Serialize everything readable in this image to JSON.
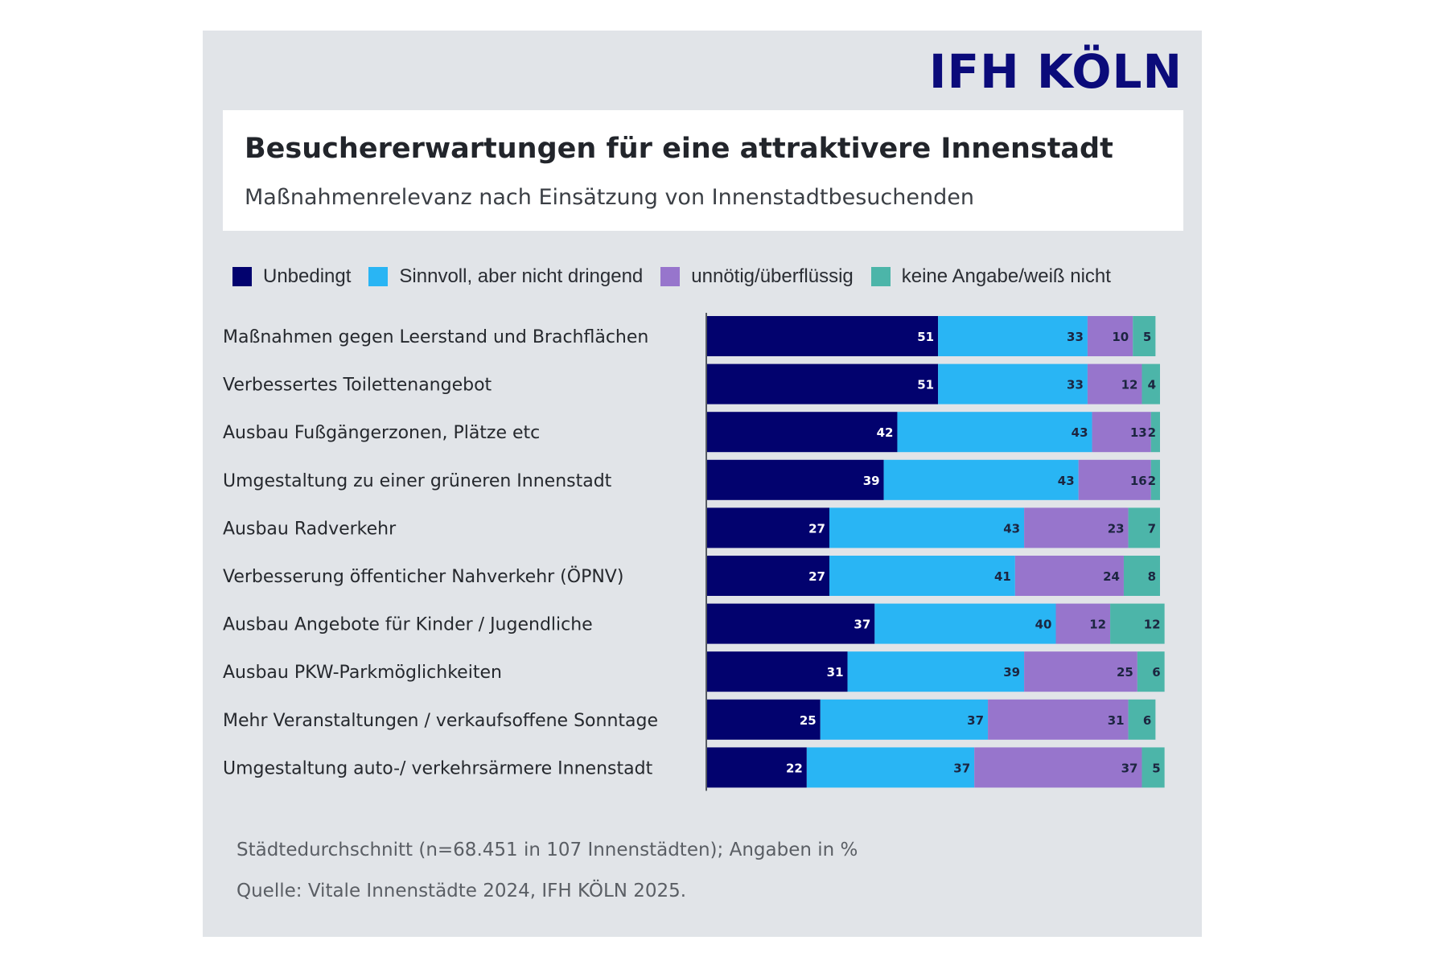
{
  "logo": "IFH KÖLN",
  "header": {
    "title": "Besuchererwartungen für eine attraktivere Innenstadt",
    "subtitle": "Maßnahmenrelevanz nach Einsätzung von Innenstadtbesuchenden"
  },
  "footer": {
    "note": "Städtedurchschnitt (n=68.451 in 107 Innenstädten); Angaben in %",
    "source": "Quelle: Vitale Innenstädte 2024, IFH KÖLN 2025."
  },
  "chart_data": {
    "type": "bar",
    "orientation": "horizontal",
    "stacked": true,
    "title": "Besuchererwartungen für eine attraktivere Innenstadt",
    "subtitle": "Maßnahmenrelevanz nach Einsätzung von Innenstadtbesuchenden",
    "xlabel": "",
    "ylabel": "",
    "unit": "%",
    "xlim": [
      0,
      100
    ],
    "grid": false,
    "legend_position": "top",
    "categories": [
      "Maßnahmen gegen Leerstand und Brachflächen",
      "Verbessertes Toilettenangebot",
      "Ausbau Fußgängerzonen, Plätze etc",
      "Umgestaltung zu einer grüneren Innenstadt",
      "Ausbau Radverkehr",
      "Verbesserung öffenticher Nahverkehr (ÖPNV)",
      "Ausbau Angebote für Kinder / Jugendliche",
      "Ausbau PKW-Parkmöglichkeiten",
      "Mehr Veranstaltungen / verkaufsoffene Sonntage",
      "Umgestaltung auto-/ verkehrsärmere Innenstadt"
    ],
    "series": [
      {
        "name": "Unbedingt",
        "color": "#02026e",
        "label_color": "#ffffff",
        "values": [
          51,
          51,
          42,
          39,
          27,
          27,
          37,
          31,
          25,
          22
        ]
      },
      {
        "name": "Sinnvoll, aber nicht dringend",
        "color": "#29b5f4",
        "label_color": "#1c2540",
        "values": [
          33,
          33,
          43,
          43,
          43,
          41,
          40,
          39,
          37,
          37
        ]
      },
      {
        "name": "unnötig/überflüssig",
        "color": "#9775cc",
        "label_color": "#1c2540",
        "values": [
          10,
          12,
          13,
          16,
          23,
          24,
          12,
          25,
          31,
          37
        ]
      },
      {
        "name": "keine Angabe/weiß nicht",
        "color": "#4cb5a9",
        "label_color": "#1c2540",
        "values": [
          5,
          4,
          2,
          2,
          7,
          8,
          12,
          6,
          6,
          5
        ]
      }
    ]
  }
}
